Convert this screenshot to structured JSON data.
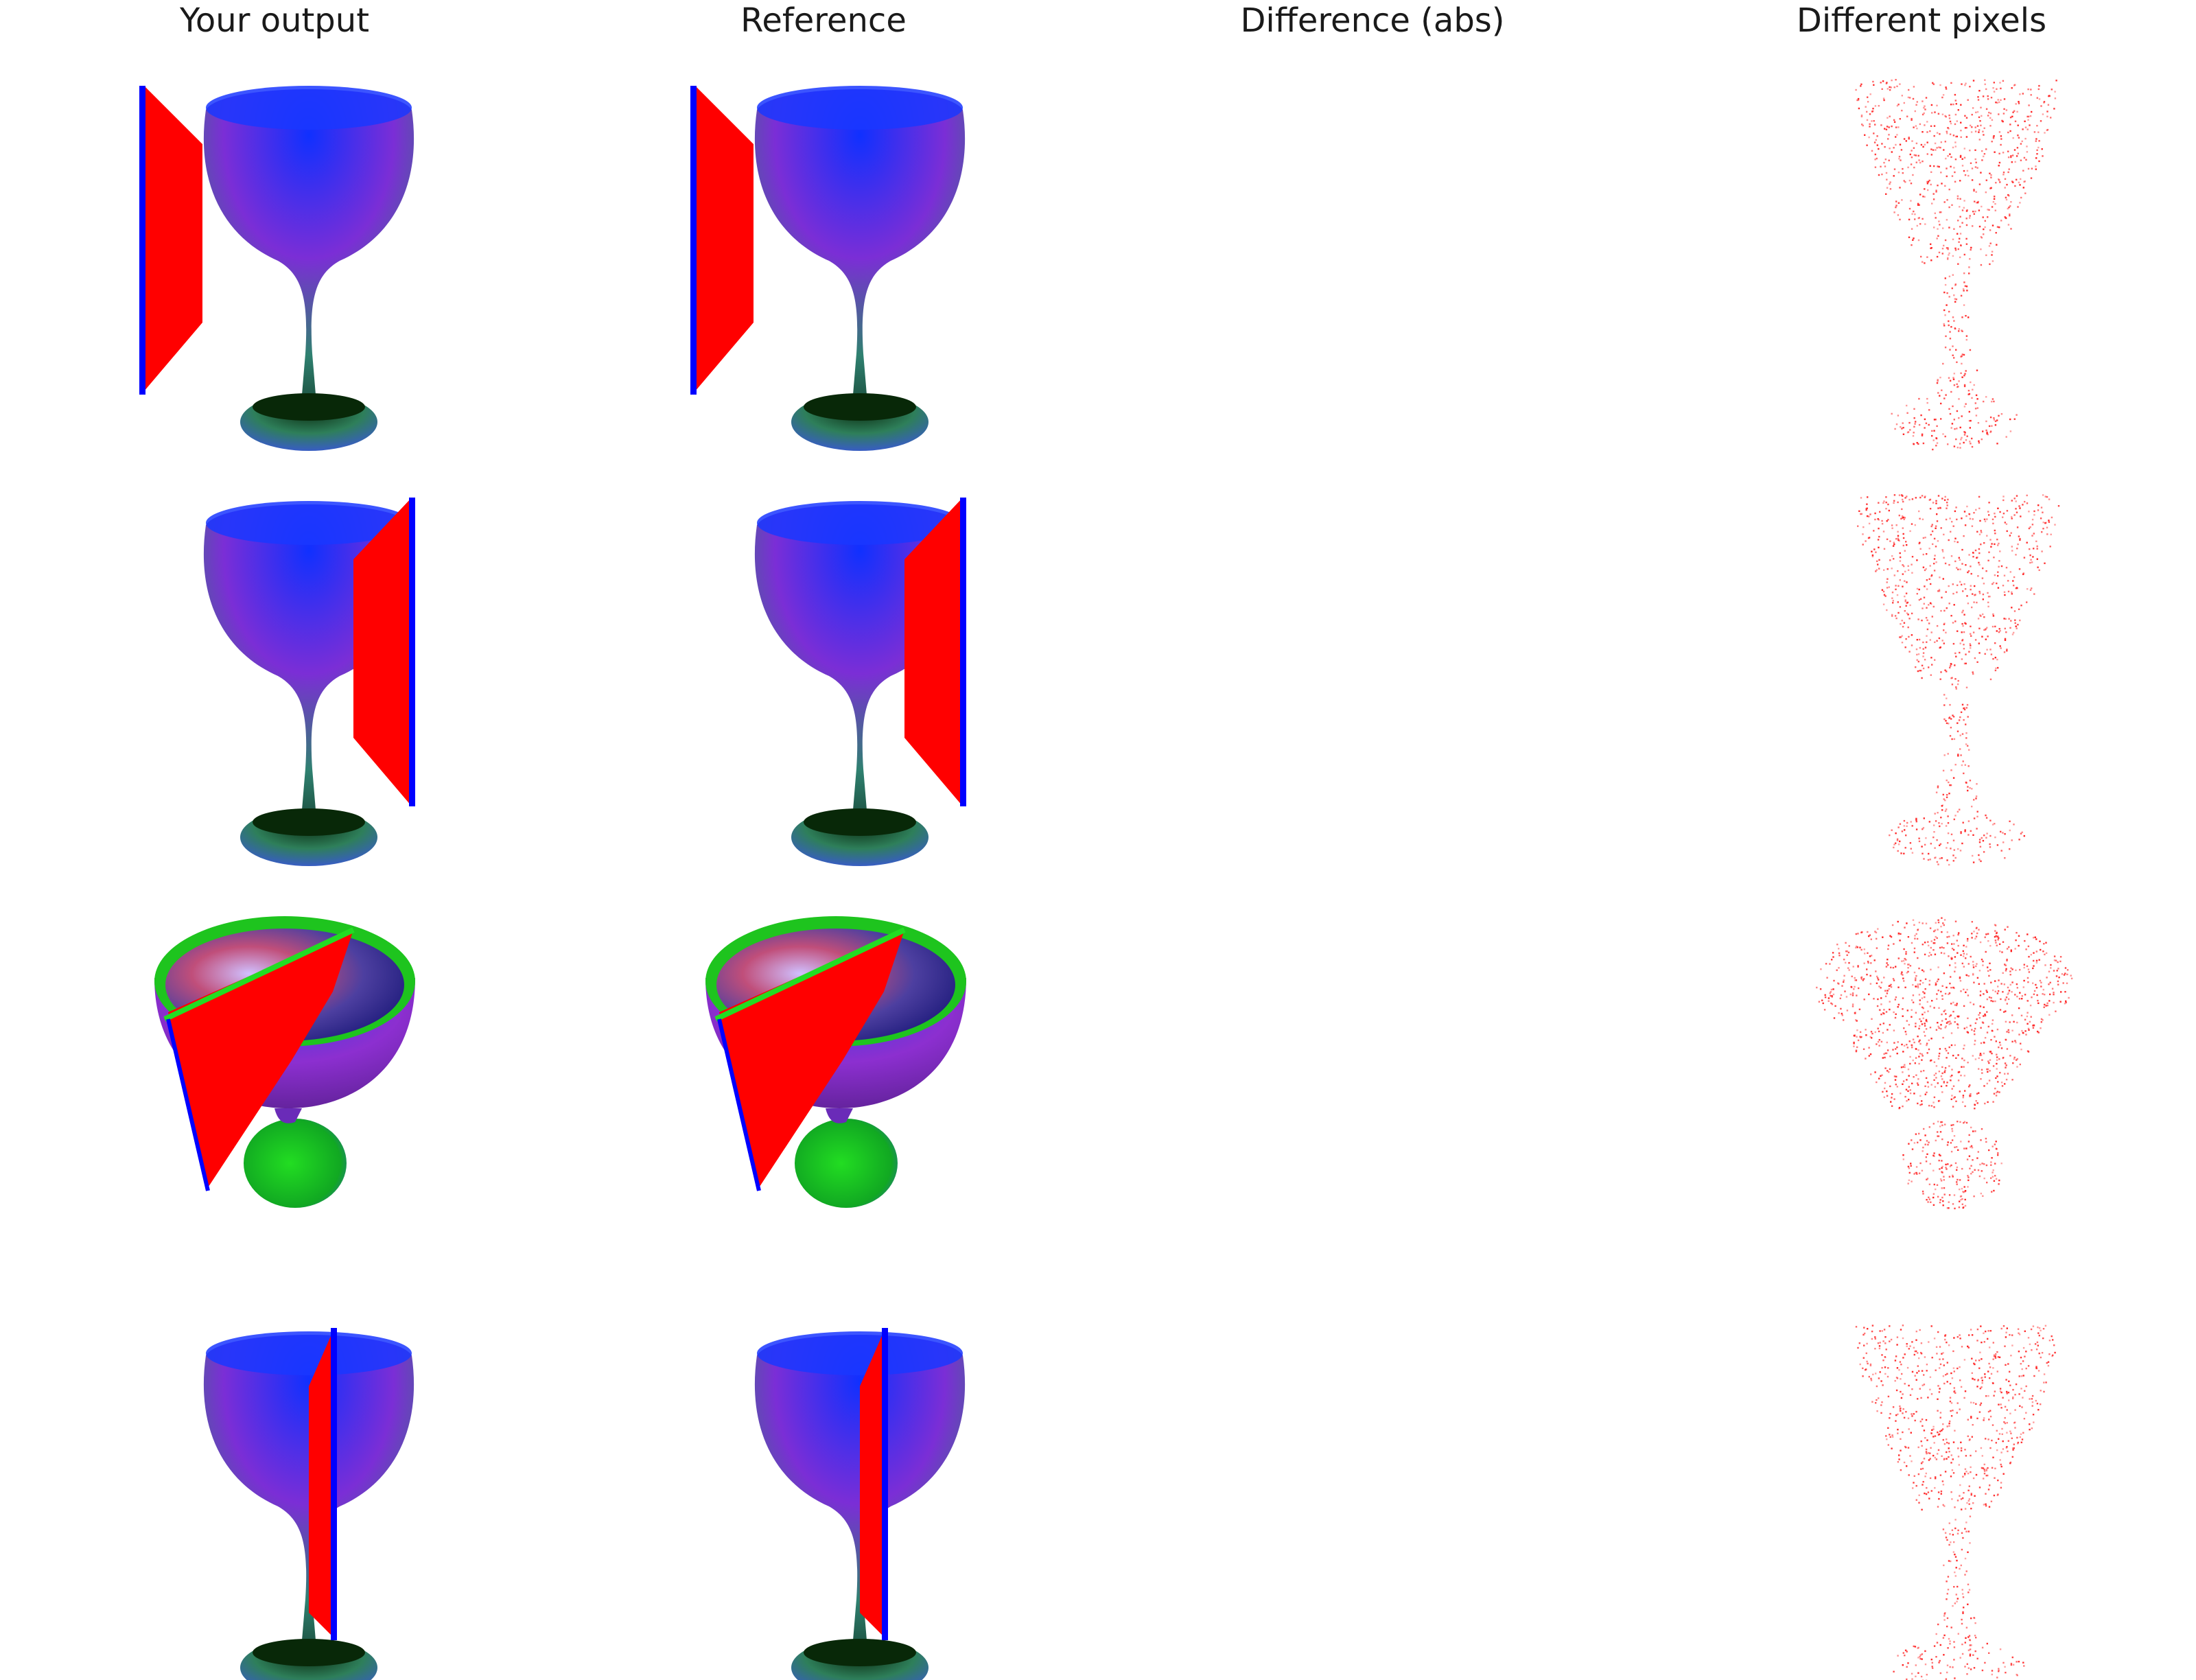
{
  "columns": [
    {
      "id": "output",
      "title": "Your output"
    },
    {
      "id": "reference",
      "title": "Reference"
    },
    {
      "id": "difference",
      "title": "Difference (abs)"
    },
    {
      "id": "pixels",
      "title": "Different pixels"
    }
  ],
  "rows": [
    {
      "view": "front",
      "plane": "left"
    },
    {
      "view": "front",
      "plane": "right"
    },
    {
      "view": "top-oblique",
      "plane": "diagonal"
    },
    {
      "view": "front",
      "plane": "center-right"
    }
  ],
  "colors": {
    "plane_fill": "#ff0000",
    "plane_edge": "#0000ff",
    "rim_line": "#22dd22",
    "diff_dot": "#ff2222",
    "background": "#ffffff"
  }
}
